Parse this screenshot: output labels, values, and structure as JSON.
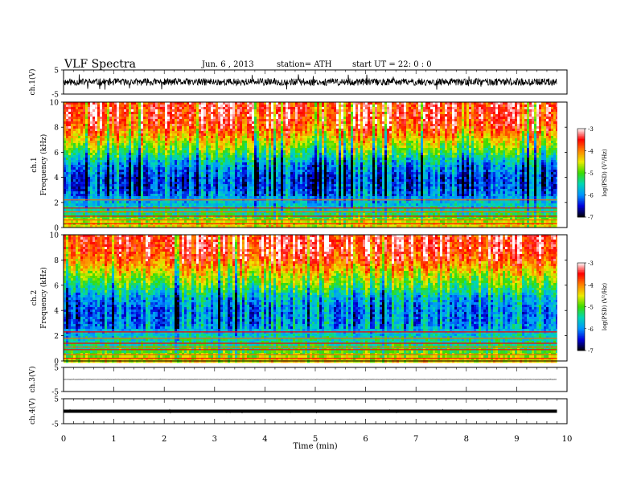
{
  "header": {
    "title": "VLF  Spectra",
    "date": "Jun. 6  , 2013",
    "station": "station= ATH",
    "start": "start  UT  =    22: 0  : 0"
  },
  "chart_data": [
    {
      "type": "line",
      "panel": "ch1-waveform",
      "ylabel": "ch.1(V)",
      "ylim": [
        -5,
        5
      ],
      "yticks": [
        "5",
        "-5"
      ],
      "x_range_min": [
        0,
        9.8
      ],
      "amplitude_v": 1.5
    },
    {
      "type": "heatmap",
      "panel": "ch1-spectrogram",
      "ylabel": "Frequency  (kHz)",
      "channel_label": "ch.1",
      "ylim_khz": [
        0,
        10
      ],
      "yticks": [
        "0",
        "2",
        "4",
        "6",
        "8",
        "10"
      ],
      "x_range_min": [
        0,
        9.8
      ],
      "colorbar": {
        "label": "log(PSD) (V²/Hz)",
        "range": [
          -7,
          -3
        ],
        "ticks": [
          "-3",
          "-4",
          "-5",
          "-6",
          "-7"
        ]
      },
      "band_logpsd_by_khz": [
        [
          0,
          -4.3
        ],
        [
          0.5,
          -4.6
        ],
        [
          1,
          -5.2
        ],
        [
          2,
          -5.7
        ],
        [
          3,
          -6.1
        ],
        [
          4,
          -6.2
        ],
        [
          5,
          -5.8
        ],
        [
          6,
          -5.0
        ],
        [
          7,
          -4.3
        ],
        [
          8,
          -3.6
        ],
        [
          9,
          -3.4
        ],
        [
          10,
          -3.4
        ]
      ],
      "horizontal_lines_khz": [
        0.3,
        0.6,
        0.9,
        1.25,
        1.55,
        2.2
      ]
    },
    {
      "type": "heatmap",
      "panel": "ch2-spectrogram",
      "ylabel": "Frequency  (kHz)",
      "channel_label": "ch.2",
      "ylim_khz": [
        0,
        10
      ],
      "yticks": [
        "0",
        "2",
        "4",
        "6",
        "8",
        "10"
      ],
      "x_range_min": [
        0,
        9.8
      ],
      "colorbar": {
        "label": "log(PSD) (V²/Hz)",
        "range": [
          -7,
          -3
        ],
        "ticks": [
          "-3",
          "-4",
          "-5",
          "-6",
          "-7"
        ]
      },
      "band_logpsd_by_khz": [
        [
          0,
          -4.4
        ],
        [
          0.5,
          -4.8
        ],
        [
          1,
          -5.2
        ],
        [
          2,
          -5.6
        ],
        [
          3,
          -5.9
        ],
        [
          4,
          -6.0
        ],
        [
          5,
          -5.7
        ],
        [
          6,
          -5.0
        ],
        [
          7,
          -4.4
        ],
        [
          8,
          -3.7
        ],
        [
          9,
          -3.4
        ],
        [
          10,
          -3.4
        ]
      ],
      "horizontal_lines_khz": [
        0.2,
        0.5,
        0.9,
        1.1,
        1.4,
        1.8,
        2.3
      ]
    },
    {
      "type": "line",
      "panel": "ch3-waveform",
      "ylabel": "ch.3(V)",
      "ylim": [
        -5,
        5
      ],
      "yticks": [
        "5",
        "-5"
      ],
      "x_range_min": [
        0,
        9.8
      ],
      "amplitude_v": 0.05
    },
    {
      "type": "line",
      "panel": "ch4-waveform",
      "ylabel": "ch.4(V)",
      "ylim": [
        -5,
        5
      ],
      "yticks": [
        "5",
        "-5"
      ],
      "x_range_min": [
        0,
        9.8
      ],
      "amplitude_v": 0.3
    }
  ],
  "xaxis": {
    "label": "Time  (min)",
    "ticks": [
      "0",
      "1",
      "2",
      "3",
      "4",
      "5",
      "6",
      "7",
      "8",
      "9",
      "10"
    ],
    "range": [
      0,
      10
    ]
  }
}
